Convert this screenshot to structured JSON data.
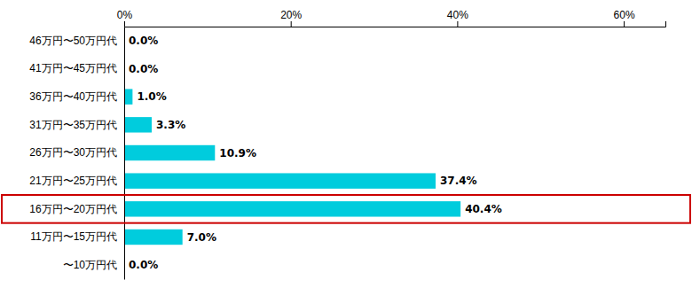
{
  "chart_data": {
    "type": "bar",
    "orientation": "horizontal",
    "categories": [
      "46万円〜50万円代",
      "41万円〜45万円代",
      "36万円〜40万円代",
      "31万円〜35万円代",
      "26万円〜30万円代",
      "21万円〜25万円代",
      "16万円〜20万円代",
      "11万円〜15万円代",
      "〜10万円代"
    ],
    "values": [
      0.0,
      0.0,
      1.0,
      3.3,
      10.9,
      37.4,
      40.4,
      7.0,
      0.0
    ],
    "value_labels": [
      "0.0%",
      "0.0%",
      "1.0%",
      "3.3%",
      "10.9%",
      "37.4%",
      "40.4%",
      "7.0%",
      "0.0%"
    ],
    "data_labels": true,
    "color": "#00CCDD",
    "xlim": [
      0,
      65
    ],
    "xticks": [
      {
        "value": 0,
        "label": "0%"
      },
      {
        "value": 20,
        "label": "20%"
      },
      {
        "value": 40,
        "label": "40%"
      },
      {
        "value": 60,
        "label": "60%"
      }
    ],
    "grid": false
  }
}
